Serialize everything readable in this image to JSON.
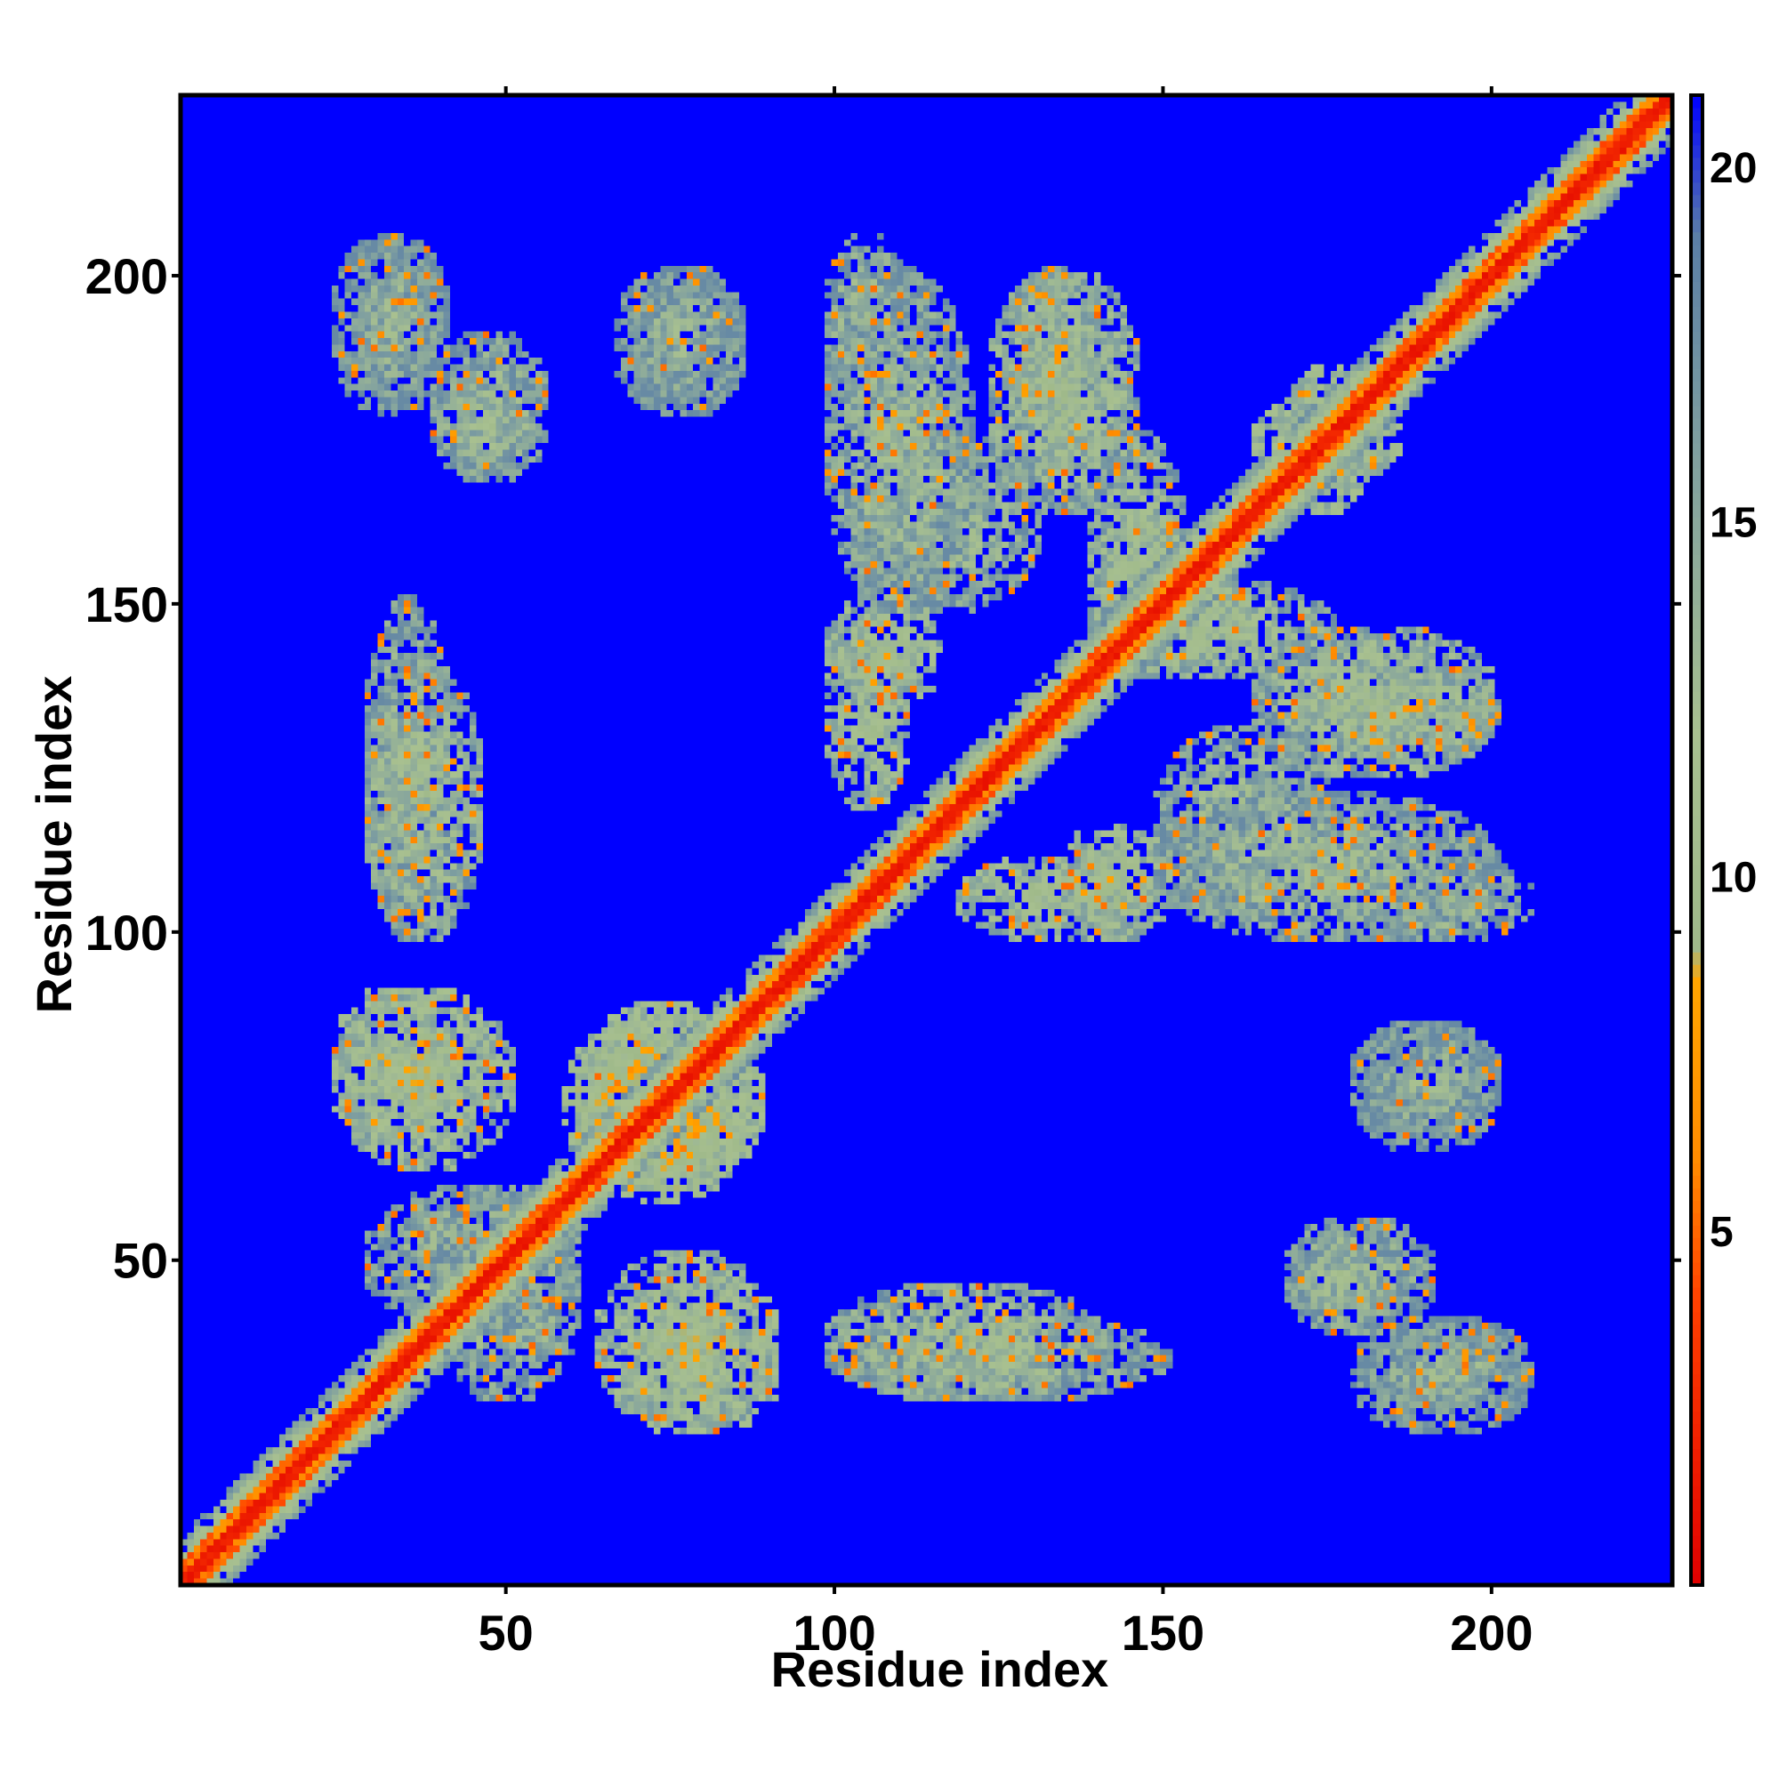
{
  "chart_data": {
    "type": "heatmap",
    "title": "",
    "xlabel": "Residue index",
    "ylabel": "Residue index",
    "n_residues": 227,
    "xlim": [
      1,
      227
    ],
    "ylim": [
      1,
      227
    ],
    "x_ticks": [
      50,
      100,
      150,
      200
    ],
    "y_ticks": [
      50,
      100,
      150,
      200
    ],
    "x_tick_labels": [
      "50",
      "100",
      "150",
      "200"
    ],
    "y_tick_labels": [
      "50",
      "100",
      "150",
      "200"
    ],
    "colorbar": {
      "range": [
        0,
        21
      ],
      "ticks": [
        5,
        10,
        15,
        20
      ],
      "tick_labels": [
        "5",
        "10",
        "15",
        "20"
      ],
      "colors": [
        {
          "value": 0,
          "color": "#e00000"
        },
        {
          "value": 4,
          "color": "#ff4000"
        },
        {
          "value": 6,
          "color": "#ff8c00"
        },
        {
          "value": 8.5,
          "color": "#ffa500"
        },
        {
          "value": 9,
          "color": "#9fb98a"
        },
        {
          "value": 12,
          "color": "#a8c090"
        },
        {
          "value": 16,
          "color": "#7f9fa0"
        },
        {
          "value": 19,
          "color": "#5b7fa6"
        },
        {
          "value": 21,
          "color": "#0000ff"
        }
      ],
      "background_color": "#0000ff"
    },
    "contact_regions": [
      {
        "x": [
          28,
          38
        ],
        "y": [
          182,
          205
        ],
        "level": 12
      },
      {
        "x": [
          40,
          55
        ],
        "y": [
          170,
          190
        ],
        "level": 12
      },
      {
        "x": [
          68,
          85
        ],
        "y": [
          180,
          200
        ],
        "level": 13
      },
      {
        "x": [
          100,
          110
        ],
        "y": [
          180,
          205
        ],
        "level": 12
      },
      {
        "x": [
          128,
          140
        ],
        "y": [
          170,
          200
        ],
        "level": 11
      },
      {
        "x": [
          170,
          180
        ],
        "y": [
          165,
          185
        ],
        "level": 9
      },
      {
        "x": [
          103,
          130
        ],
        "y": [
          150,
          175
        ],
        "level": 12
      },
      {
        "x": [
          140,
          152
        ],
        "y": [
          140,
          175
        ],
        "level": 11
      },
      {
        "x": [
          30,
          40
        ],
        "y": [
          100,
          150
        ],
        "level": 12
      },
      {
        "x": [
          100,
          110
        ],
        "y": [
          120,
          145
        ],
        "level": 10
      },
      {
        "x": [
          165,
          200
        ],
        "y": [
          125,
          145
        ],
        "level": 11
      },
      {
        "x": [
          135,
          150
        ],
        "y": [
          100,
          115
        ],
        "level": 10
      },
      {
        "x": [
          150,
          200
        ],
        "y": [
          100,
          120
        ],
        "level": 12
      },
      {
        "x": [
          25,
          40
        ],
        "y": [
          70,
          90
        ],
        "level": 9
      },
      {
        "x": [
          62,
          86
        ],
        "y": [
          60,
          88
        ],
        "level": 8
      },
      {
        "x": [
          30,
          60
        ],
        "y": [
          40,
          60
        ],
        "level": 12
      },
      {
        "x": [
          65,
          90
        ],
        "y": [
          25,
          50
        ],
        "level": 10
      },
      {
        "x": [
          100,
          140
        ],
        "y": [
          30,
          45
        ],
        "level": 11
      },
      {
        "x": [
          170,
          185
        ],
        "y": [
          40,
          55
        ],
        "level": 12
      },
      {
        "x": [
          180,
          200
        ],
        "y": [
          70,
          85
        ],
        "level": 13
      },
      {
        "x": [
          180,
          205
        ],
        "y": [
          25,
          40
        ],
        "level": 13
      }
    ]
  }
}
